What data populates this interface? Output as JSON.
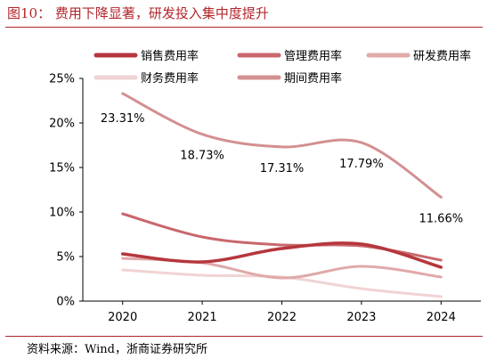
{
  "header": {
    "title": "图10：  费用下降显著，研发投入集中度提升"
  },
  "footer": {
    "source": "资料来源：Wind，浙商证券研究所"
  },
  "chart_data": {
    "type": "line",
    "title": "图10：  费用下降显著，研发投入集中度提升",
    "categories": [
      "2020",
      "2021",
      "2022",
      "2023",
      "2024"
    ],
    "ylim": [
      0,
      25
    ],
    "yticks": [
      "0%",
      "5%",
      "10%",
      "15%",
      "20%",
      "25%"
    ],
    "ytick_values": [
      0,
      5,
      10,
      15,
      20,
      25
    ],
    "grid": false,
    "legend_position": "top",
    "series": [
      {
        "name": "销售费用率",
        "color": "#b5373d",
        "width": 3.5,
        "values": [
          5.3,
          4.4,
          5.9,
          6.4,
          3.8
        ]
      },
      {
        "name": "管理费用率",
        "color": "#c9676c",
        "width": 3,
        "values": [
          9.8,
          7.2,
          6.3,
          6.2,
          4.6
        ]
      },
      {
        "name": "研发费用率",
        "color": "#e0a9aa",
        "width": 3,
        "values": [
          4.8,
          4.3,
          2.6,
          3.9,
          2.7
        ]
      },
      {
        "name": "财务费用率",
        "color": "#f1d3d3",
        "width": 3,
        "values": [
          3.5,
          2.9,
          2.7,
          1.4,
          0.5
        ]
      },
      {
        "name": "期间费用率",
        "color": "#d48f91",
        "width": 3,
        "values": [
          23.31,
          18.73,
          17.31,
          17.79,
          11.66
        ]
      }
    ],
    "data_labels": {
      "series": "期间费用率",
      "labels": [
        "23.31%",
        "18.73%",
        "17.31%",
        "17.79%",
        "11.66%"
      ]
    }
  }
}
